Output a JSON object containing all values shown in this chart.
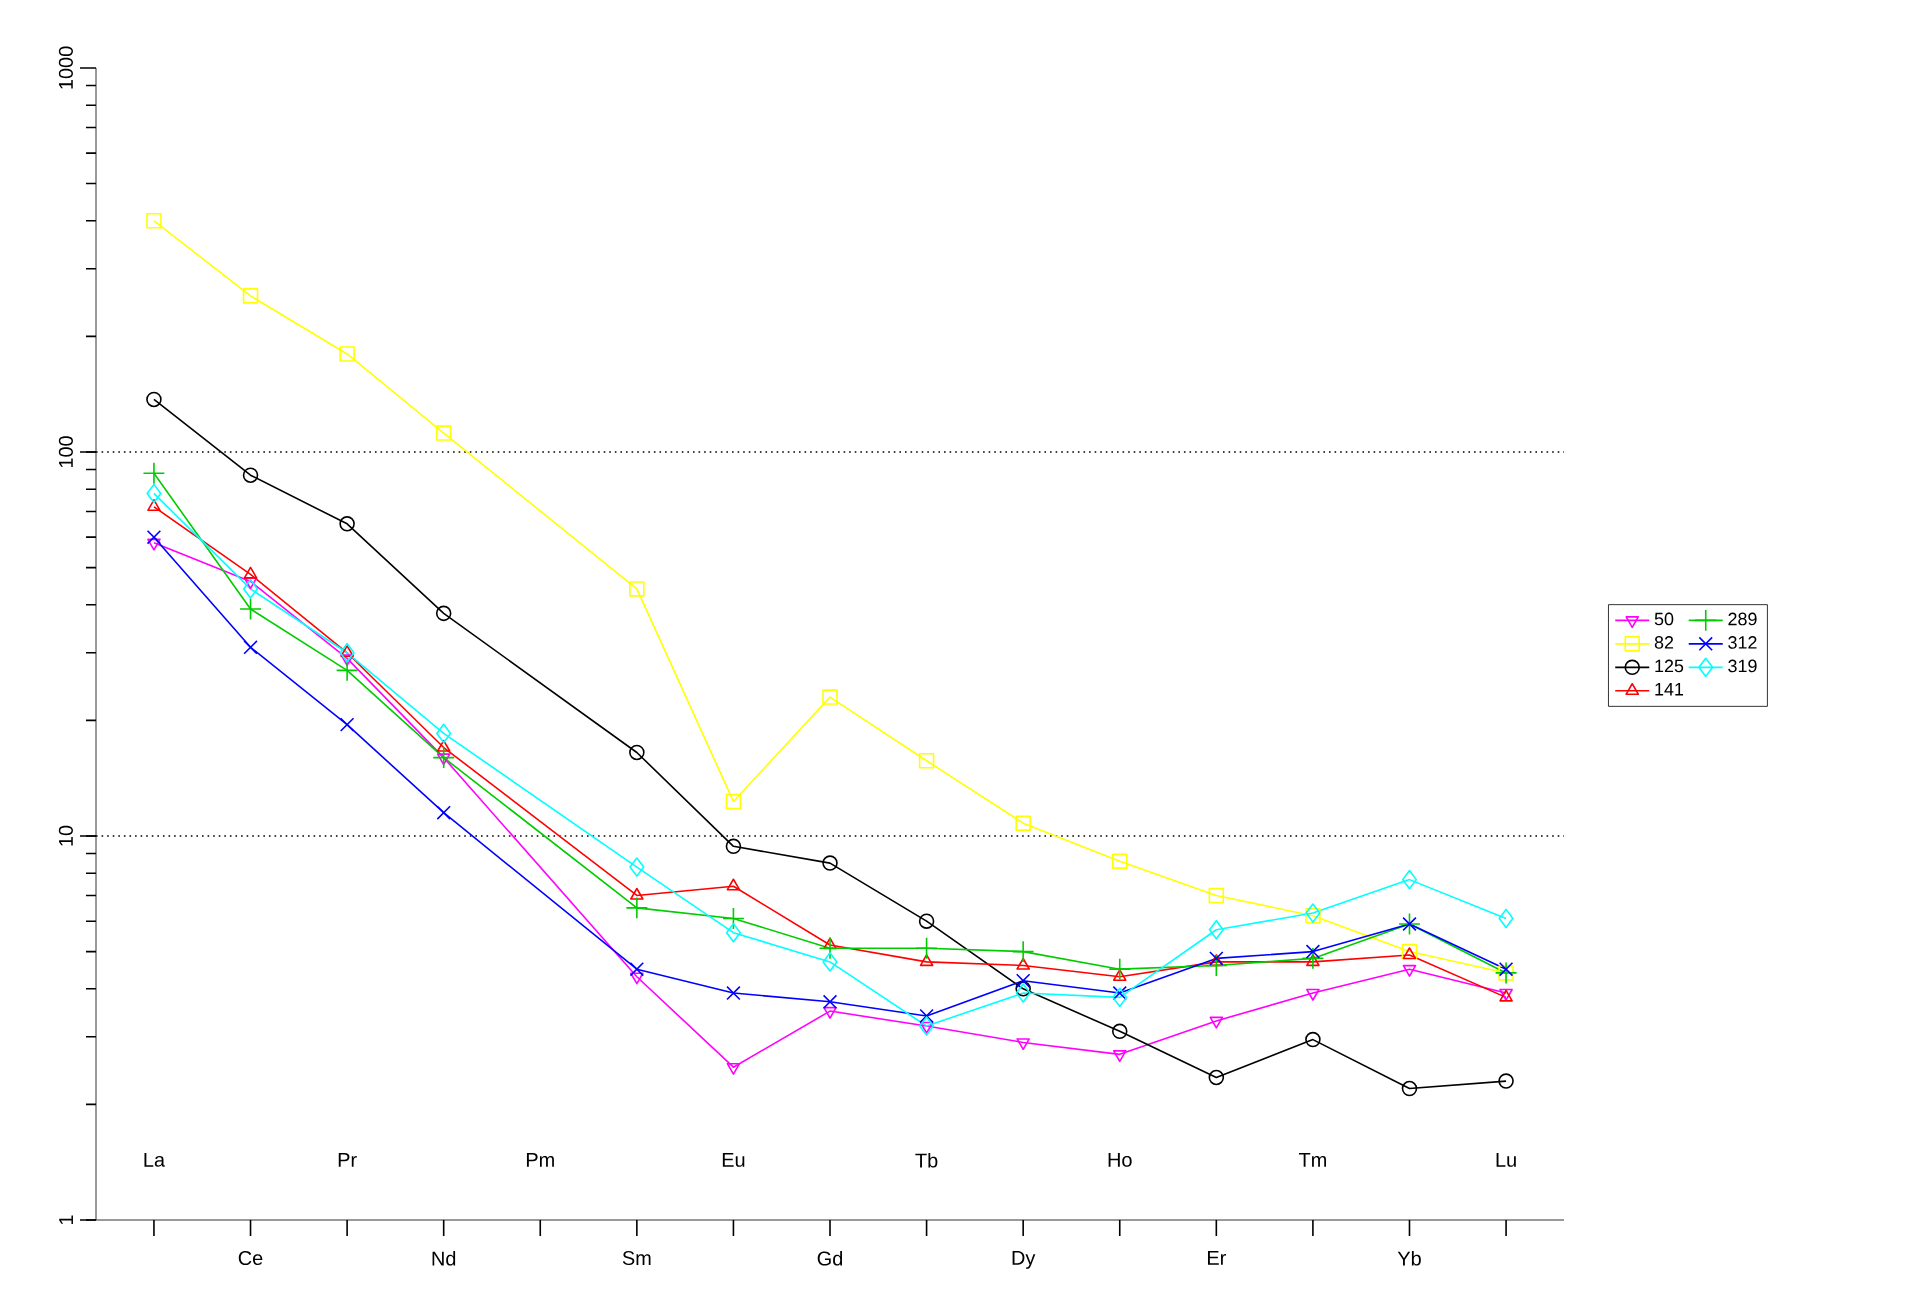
{
  "chart_data": {
    "type": "line",
    "log": "y",
    "legend": "right",
    "categories": [
      "La",
      "Ce",
      "Pr",
      "Nd",
      "Pm",
      "Sm",
      "Eu",
      "Gd",
      "Tb",
      "Dy",
      "Ho",
      "Er",
      "Tm",
      "Yb",
      "Lu"
    ],
    "ylim": [
      1,
      1000
    ],
    "yticks": [
      1,
      10,
      100,
      1000
    ],
    "ref_lines": [
      {
        "axis": "y",
        "value": 10,
        "line_style": "dotted",
        "color": "#000000"
      },
      {
        "axis": "y",
        "value": 100,
        "line_style": "dotted",
        "color": "#000000"
      }
    ],
    "series": [
      {
        "name": "50",
        "color": "#ff00ff",
        "marker": "triangle_down",
        "values": [
          58,
          46,
          29,
          16,
          null,
          4.3,
          2.5,
          3.5,
          3.2,
          2.9,
          2.7,
          3.3,
          3.9,
          4.5,
          3.9
        ]
      },
      {
        "name": "82",
        "color": "#ffff00",
        "marker": "square",
        "values": [
          400,
          255,
          180,
          112,
          null,
          44,
          12.3,
          23,
          15.7,
          10.8,
          8.6,
          7.0,
          6.2,
          5.0,
          4.4
        ]
      },
      {
        "name": "125",
        "color": "#000000",
        "marker": "circle",
        "values": [
          137,
          87,
          65,
          38,
          null,
          16.5,
          9.4,
          8.5,
          6.0,
          4.0,
          3.1,
          2.35,
          2.95,
          2.2,
          2.3
        ]
      },
      {
        "name": "141",
        "color": "#ff0000",
        "marker": "triangle",
        "values": [
          72,
          48,
          30,
          17,
          null,
          7.0,
          7.4,
          5.2,
          4.7,
          4.6,
          4.3,
          4.7,
          4.7,
          4.9,
          3.8
        ]
      },
      {
        "name": "289",
        "color": "#00cc00",
        "marker": "plus",
        "values": [
          88,
          39,
          27,
          16,
          null,
          6.5,
          6.1,
          5.1,
          5.1,
          5.0,
          4.5,
          4.6,
          4.8,
          5.9,
          4.4
        ]
      },
      {
        "name": "312",
        "color": "#0000ff",
        "marker": "cross",
        "values": [
          60,
          31,
          19.5,
          11.5,
          null,
          4.5,
          3.9,
          3.7,
          3.4,
          4.2,
          3.9,
          4.8,
          5.0,
          5.9,
          4.5
        ]
      },
      {
        "name": "319",
        "color": "#00ffff",
        "marker": "diamond",
        "values": [
          78,
          44,
          30,
          18.5,
          null,
          8.3,
          5.6,
          4.7,
          3.2,
          3.9,
          3.8,
          5.7,
          6.3,
          7.7,
          6.1
        ]
      }
    ]
  }
}
